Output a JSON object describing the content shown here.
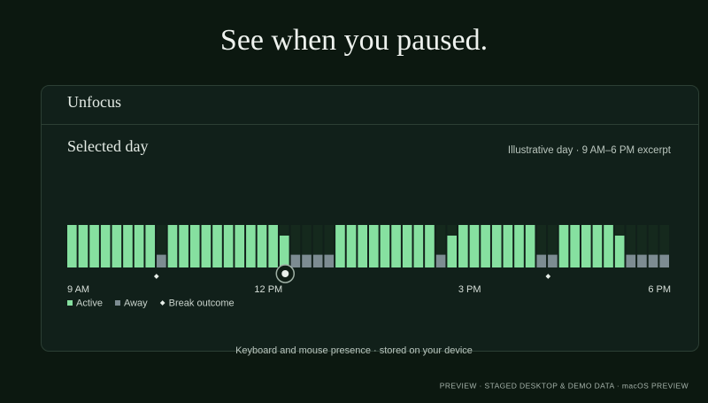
{
  "headline": "See when you paused.",
  "window": {
    "title": "Unfocus",
    "section": "Selected day",
    "note": "Illustrative day · 9 AM–6 PM excerpt"
  },
  "caption": "Keyboard and mouse presence · stored on your device",
  "footer": "PREVIEW · STAGED DESKTOP & DEMO DATA · macOS PREVIEW",
  "chart_data": {
    "type": "bar",
    "stacked": true,
    "xlim": [
      9,
      18
    ],
    "xticks": [
      {
        "value": 9,
        "label": "9 AM"
      },
      {
        "value": 12,
        "label": "12 PM"
      },
      {
        "value": 15,
        "label": "3 PM"
      },
      {
        "value": 18,
        "label": "6 PM"
      }
    ],
    "ylim": [
      0,
      10
    ],
    "series": [
      {
        "name": "Active",
        "color": "#86e0a0",
        "values": [
          10,
          10,
          10,
          10,
          10,
          10,
          10,
          10,
          0,
          10,
          10,
          10,
          10,
          10,
          10,
          10,
          10,
          10,
          10,
          7.5,
          0,
          0,
          0,
          0,
          10,
          10,
          10,
          10,
          10,
          10,
          10,
          10,
          10,
          0,
          7.5,
          10,
          10,
          10,
          10,
          10,
          10,
          10,
          0,
          0,
          10,
          10,
          10,
          10,
          10,
          7.5,
          0,
          0,
          0,
          0
        ]
      },
      {
        "name": "Away",
        "color": "#7d8c92",
        "values": [
          0,
          0,
          0,
          0,
          0,
          0,
          0,
          0,
          3,
          0,
          0,
          0,
          0,
          0,
          0,
          0,
          0,
          0,
          0,
          0,
          3,
          3,
          3,
          3,
          0,
          0,
          0,
          0,
          0,
          0,
          0,
          0,
          0,
          3,
          0,
          0,
          0,
          0,
          0,
          0,
          0,
          0,
          3,
          3,
          0,
          0,
          0,
          0,
          0,
          0,
          3,
          3,
          3,
          3
        ]
      }
    ],
    "break_outcomes": {
      "name": "Break outcome",
      "color": "#e8efe9",
      "x": [
        10.33,
        12.25,
        16.17
      ],
      "selected": 1
    }
  }
}
